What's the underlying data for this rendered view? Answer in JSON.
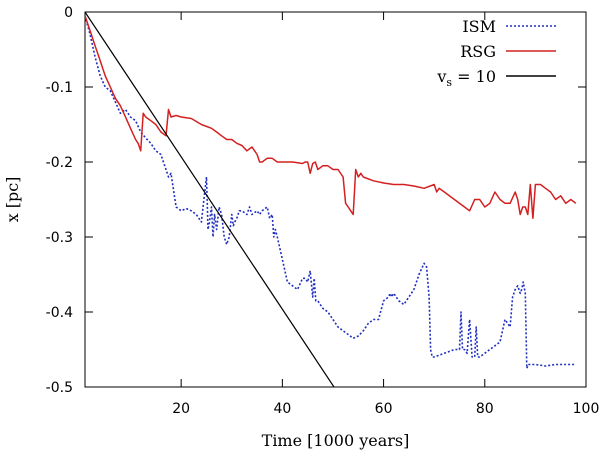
{
  "chart_data": {
    "type": "line",
    "xlabel": "Time [1000 years]",
    "ylabel": "x [pc]",
    "xlim": [
      1,
      100
    ],
    "ylim": [
      -0.5,
      0
    ],
    "x_ticks": [
      20,
      40,
      60,
      80,
      100
    ],
    "x_tick_labels": [
      "20",
      "40",
      "60",
      "80",
      "100"
    ],
    "y_ticks": [
      0,
      -0.1,
      -0.2,
      -0.3,
      -0.4,
      -0.5
    ],
    "y_tick_labels": [
      "0",
      "-0.1",
      "-0.2",
      "-0.3",
      "-0.4",
      "-0.5"
    ],
    "legend_position": "top-right",
    "series": [
      {
        "name": "ISM",
        "legend_label": "ISM",
        "color": "#1f2fbf",
        "style": "dotted",
        "x": [
          1,
          2,
          3,
          4,
          5,
          6,
          7,
          8,
          9,
          10,
          11,
          12,
          13,
          14,
          15,
          16,
          16.5,
          17,
          17.5,
          18,
          19,
          20,
          21,
          22,
          23,
          24,
          24.5,
          25,
          25.3,
          25.6,
          26,
          26.3,
          26.6,
          27,
          27.5,
          28,
          28.5,
          29,
          29.5,
          30,
          30.3,
          30.6,
          31,
          31.5,
          32,
          33,
          33.5,
          34,
          35,
          35.5,
          36,
          37,
          37.5,
          38,
          38.3,
          38.6,
          39,
          40,
          41,
          42,
          43,
          44,
          44.5,
          45,
          45.5,
          46,
          46.3,
          46.6,
          47,
          48,
          49,
          50,
          51,
          52,
          53,
          54,
          55,
          56,
          57,
          58,
          59,
          60,
          61,
          61.3,
          61.6,
          62,
          63,
          64,
          65,
          66,
          67,
          68,
          68.5,
          69,
          69.3,
          69.6,
          70,
          72,
          74,
          75,
          75.3,
          75.6,
          76,
          76.5,
          77,
          77.5,
          78,
          78.3,
          78.6,
          79,
          80,
          81,
          82,
          83,
          84,
          85,
          85.5,
          86,
          86.5,
          87,
          87.3,
          87.6,
          88,
          88.3,
          88.6,
          89,
          90,
          92,
          94,
          96,
          98
        ],
        "y": [
          -0.005,
          -0.03,
          -0.06,
          -0.085,
          -0.1,
          -0.105,
          -0.12,
          -0.135,
          -0.13,
          -0.14,
          -0.145,
          -0.16,
          -0.168,
          -0.175,
          -0.185,
          -0.19,
          -0.2,
          -0.21,
          -0.22,
          -0.215,
          -0.26,
          -0.265,
          -0.262,
          -0.265,
          -0.27,
          -0.28,
          -0.25,
          -0.22,
          -0.29,
          -0.28,
          -0.26,
          -0.3,
          -0.27,
          -0.29,
          -0.26,
          -0.27,
          -0.3,
          -0.31,
          -0.3,
          -0.27,
          -0.285,
          -0.28,
          -0.275,
          -0.265,
          -0.265,
          -0.27,
          -0.26,
          -0.27,
          -0.265,
          -0.27,
          -0.265,
          -0.26,
          -0.275,
          -0.27,
          -0.3,
          -0.29,
          -0.3,
          -0.33,
          -0.36,
          -0.365,
          -0.37,
          -0.355,
          -0.355,
          -0.36,
          -0.345,
          -0.38,
          -0.355,
          -0.385,
          -0.385,
          -0.395,
          -0.4,
          -0.41,
          -0.42,
          -0.425,
          -0.43,
          -0.435,
          -0.432,
          -0.425,
          -0.415,
          -0.41,
          -0.41,
          -0.385,
          -0.38,
          -0.375,
          -0.38,
          -0.375,
          -0.385,
          -0.39,
          -0.38,
          -0.37,
          -0.35,
          -0.335,
          -0.34,
          -0.38,
          -0.45,
          -0.46,
          -0.46,
          -0.455,
          -0.45,
          -0.45,
          -0.4,
          -0.45,
          -0.45,
          -0.455,
          -0.41,
          -0.46,
          -0.46,
          -0.42,
          -0.46,
          -0.46,
          -0.455,
          -0.45,
          -0.445,
          -0.44,
          -0.41,
          -0.42,
          -0.38,
          -0.37,
          -0.365,
          -0.375,
          -0.37,
          -0.36,
          -0.375,
          -0.475,
          -0.47,
          -0.47,
          -0.47,
          -0.472,
          -0.47,
          -0.47,
          -0.47
        ]
      },
      {
        "name": "RSG",
        "legend_label": "RSG",
        "color": "#d42020",
        "style": "solid",
        "x": [
          1,
          2,
          3,
          4,
          5,
          6,
          7,
          8,
          9,
          10,
          11,
          11.5,
          12,
          12.5,
          13,
          14,
          15,
          16,
          17,
          17.5,
          18,
          19,
          20,
          22,
          24,
          26,
          27,
          28,
          29,
          30,
          31,
          32,
          33,
          34,
          35,
          35.5,
          36,
          37,
          38,
          39,
          40,
          42,
          44,
          44.5,
          45,
          45.5,
          46,
          46.5,
          47,
          48,
          49,
          50,
          51,
          52,
          52.5,
          53,
          53.5,
          54,
          54.5,
          55,
          55.5,
          56,
          58,
          60,
          62,
          64,
          66,
          68,
          70,
          70.5,
          71,
          72,
          74,
          76,
          77,
          78,
          79,
          80,
          81,
          82,
          83,
          84,
          85,
          86,
          86.5,
          87,
          87.5,
          88,
          88.5,
          89,
          89.5,
          90,
          91,
          92,
          93,
          94,
          95,
          96,
          97,
          98
        ],
        "y": [
          -0.005,
          -0.025,
          -0.045,
          -0.065,
          -0.085,
          -0.1,
          -0.115,
          -0.125,
          -0.14,
          -0.155,
          -0.17,
          -0.175,
          -0.185,
          -0.135,
          -0.14,
          -0.145,
          -0.15,
          -0.16,
          -0.165,
          -0.13,
          -0.14,
          -0.138,
          -0.14,
          -0.142,
          -0.15,
          -0.155,
          -0.16,
          -0.165,
          -0.17,
          -0.17,
          -0.175,
          -0.178,
          -0.185,
          -0.18,
          -0.19,
          -0.2,
          -0.2,
          -0.195,
          -0.195,
          -0.2,
          -0.2,
          -0.2,
          -0.202,
          -0.2,
          -0.2,
          -0.215,
          -0.202,
          -0.2,
          -0.21,
          -0.205,
          -0.205,
          -0.21,
          -0.21,
          -0.22,
          -0.255,
          -0.26,
          -0.265,
          -0.27,
          -0.21,
          -0.22,
          -0.215,
          -0.22,
          -0.225,
          -0.228,
          -0.23,
          -0.23,
          -0.232,
          -0.235,
          -0.23,
          -0.24,
          -0.235,
          -0.24,
          -0.25,
          -0.26,
          -0.265,
          -0.25,
          -0.25,
          -0.26,
          -0.255,
          -0.24,
          -0.25,
          -0.255,
          -0.255,
          -0.24,
          -0.25,
          -0.27,
          -0.26,
          -0.26,
          -0.27,
          -0.23,
          -0.275,
          -0.23,
          -0.23,
          -0.235,
          -0.24,
          -0.25,
          -0.245,
          -0.255,
          -0.25,
          -0.255
        ]
      },
      {
        "name": "vs = 10",
        "legend_label": "v",
        "legend_sub": "s",
        "legend_suffix": " = 10",
        "color": "#000000",
        "style": "solid",
        "x": [
          1,
          50.2
        ],
        "y": [
          0,
          -0.5
        ]
      }
    ]
  }
}
